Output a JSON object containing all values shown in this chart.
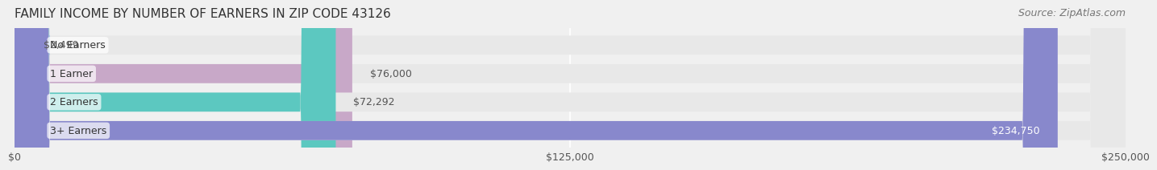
{
  "title": "FAMILY INCOME BY NUMBER OF EARNERS IN ZIP CODE 43126",
  "source": "Source: ZipAtlas.com",
  "categories": [
    "No Earners",
    "1 Earner",
    "2 Earners",
    "3+ Earners"
  ],
  "values": [
    2499,
    76000,
    72292,
    234750
  ],
  "bar_colors": [
    "#a8c8e8",
    "#c8a8c8",
    "#5cc8c0",
    "#8888cc"
  ],
  "bar_label_colors": [
    "#555555",
    "#555555",
    "#555555",
    "#ffffff"
  ],
  "xlim": [
    0,
    250000
  ],
  "xticks": [
    0,
    125000,
    250000
  ],
  "xtick_labels": [
    "$0",
    "$125,000",
    "$250,000"
  ],
  "background_color": "#f0f0f0",
  "bar_background_color": "#e8e8e8",
  "title_fontsize": 11,
  "source_fontsize": 9,
  "tick_fontsize": 9,
  "label_fontsize": 9,
  "value_fontsize": 9,
  "bar_height": 0.65,
  "figsize": [
    14.06,
    2.33
  ]
}
